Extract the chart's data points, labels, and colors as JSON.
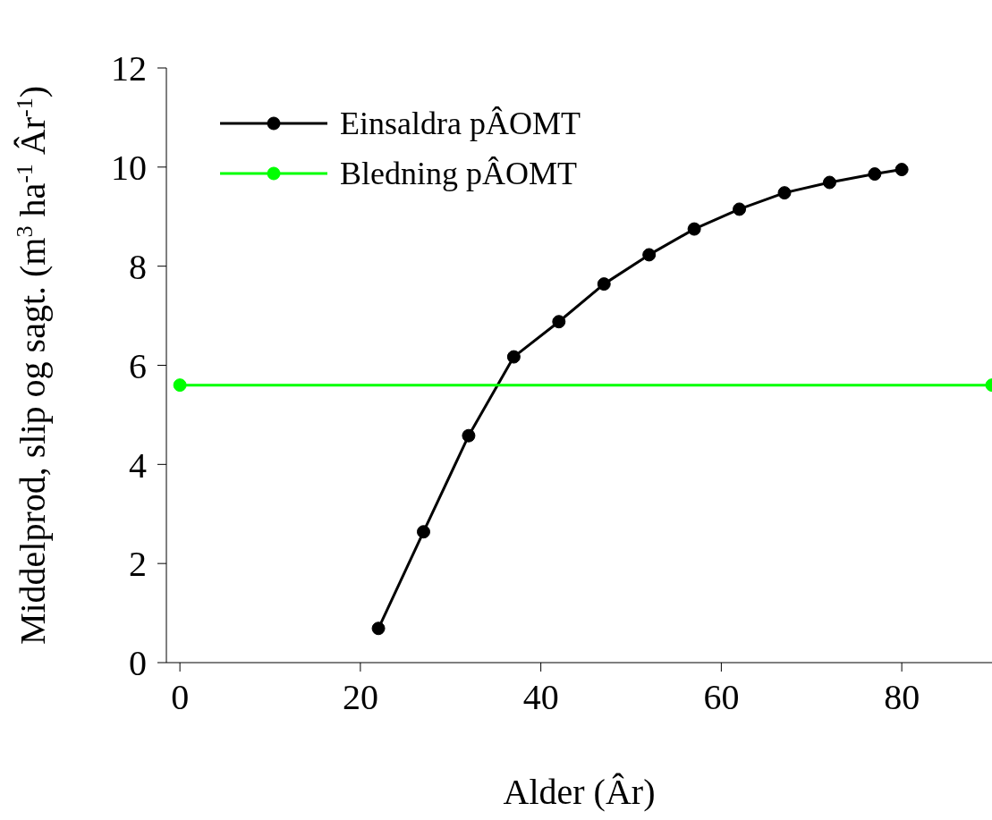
{
  "chart_data": {
    "type": "line",
    "xlabel": "Alder (Âr)",
    "ylabel": "Middelprod, slip og sagt. (m$^{3}$ ha$^{-1}$ Âr$^{-1}$)",
    "xlim": [
      -1.5,
      90
    ],
    "xticks": [
      0,
      20,
      40,
      60,
      80
    ],
    "ylim": [
      0,
      12
    ],
    "yticks": [
      0,
      2,
      4,
      6,
      8,
      10,
      12
    ],
    "grid": false,
    "legend": "top left",
    "marker": "circle",
    "line_style": "solid",
    "series": [
      {
        "name": "Einsaldra pÂOMT",
        "color": "#000000",
        "x": [
          22,
          27,
          32,
          37,
          42,
          47,
          52,
          57,
          62,
          67,
          72,
          77,
          80
        ],
        "values": [
          0.69,
          2.64,
          4.58,
          6.17,
          6.88,
          7.64,
          8.23,
          8.75,
          9.15,
          9.48,
          9.69,
          9.86,
          9.95
        ]
      },
      {
        "name": "Bledning pÂOMT",
        "color": "#00ff00",
        "x": [
          0,
          90
        ],
        "values": [
          5.6,
          5.6
        ]
      }
    ]
  }
}
